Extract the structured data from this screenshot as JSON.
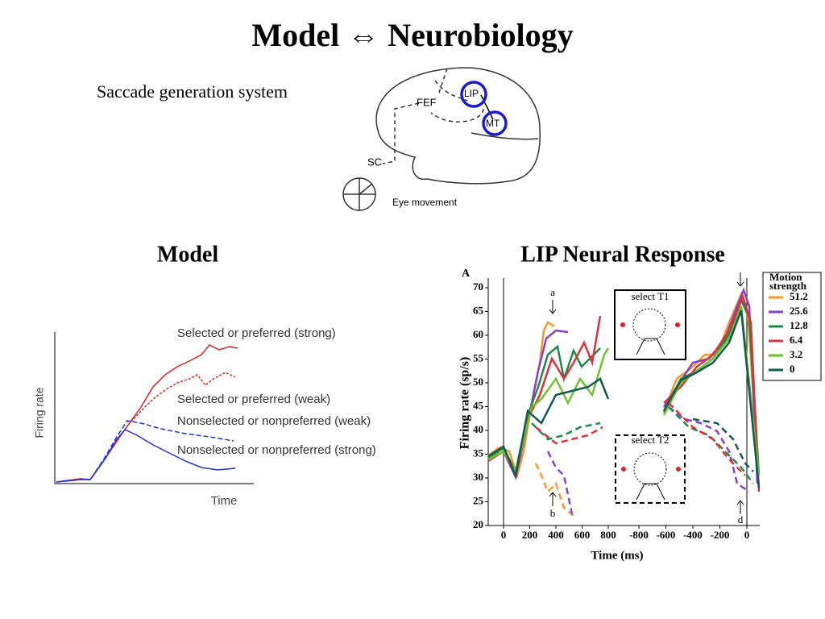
{
  "title": "Model ⇔ Neurobiology",
  "brain": {
    "caption": "Saccade generation system",
    "labels": {
      "fef": "FEF",
      "lip": "LIP",
      "mt": "MT",
      "sc": "SC"
    },
    "eye": "Eye movement"
  },
  "model": {
    "heading": "Model",
    "y_label": "Firing rate",
    "x_label": "Time",
    "curves": [
      "Selected or preferred (strong)",
      "Selected or preferred (weak)",
      "Nonselected or nonpreferred (weak)",
      "Nonselected or nonpreferred (strong)"
    ]
  },
  "lip": {
    "heading": "LIP Neural Response",
    "panel": "A",
    "y_label": "Firing rate (sp/s)",
    "x_label": "Time (ms)",
    "yticks": [
      "70",
      "65",
      "60",
      "55",
      "50",
      "45",
      "40",
      "35",
      "30",
      "25",
      "20"
    ],
    "xticks_left": [
      "0",
      "200",
      "400",
      "600",
      "800"
    ],
    "xticks_right": [
      "-800",
      "-600",
      "-400",
      "-200",
      "0"
    ],
    "arrows": {
      "a": "a",
      "b": "b",
      "d": "d"
    },
    "insets": [
      "select T1",
      "select T2"
    ],
    "legend": {
      "title": "Motion strength",
      "entries": [
        {
          "label": "51.2",
          "color": "#f29a2e"
        },
        {
          "label": "25.6",
          "color": "#8a3fc8"
        },
        {
          "label": "12.8",
          "color": "#1e8a4a"
        },
        {
          "label": "6.4",
          "color": "#e0303a"
        },
        {
          "label": "3.2",
          "color": "#6cc230"
        },
        {
          "label": "0",
          "color": "#155a50"
        }
      ]
    }
  }
}
